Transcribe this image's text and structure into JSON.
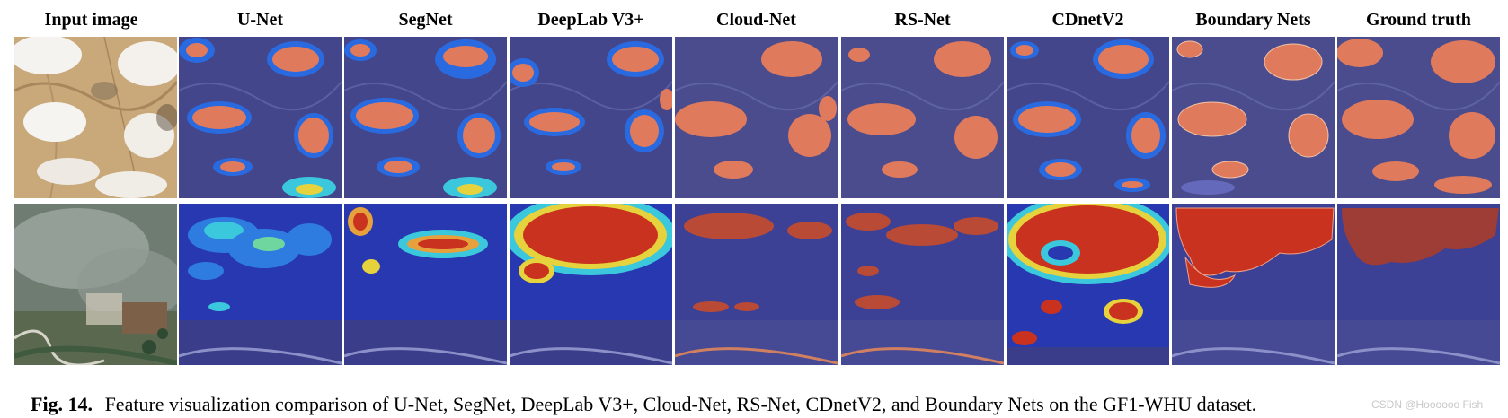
{
  "columns": [
    "Input image",
    "U-Net",
    "SegNet",
    "DeepLab V3+",
    "Cloud-Net",
    "RS-Net",
    "CDnetV2",
    "Boundary Nets",
    "Ground truth"
  ],
  "caption": {
    "label": "Fig. 14.",
    "text": "Feature visualization comparison of U-Net, SegNet, DeepLab V3+, Cloud-Net, RS-Net, CDnetV2, and Boundary Nets on the GF1-WHU dataset."
  },
  "watermark": "CSDN @Hoooooo Fish",
  "colors": {
    "map_background": "#43468a",
    "cloud_overlay": "#e07a5c",
    "heat_red": "#c8321e",
    "heat_yellow": "#e6d23c",
    "heat_cyan": "#3cc8dc",
    "heat_blue": "#2840c0"
  }
}
